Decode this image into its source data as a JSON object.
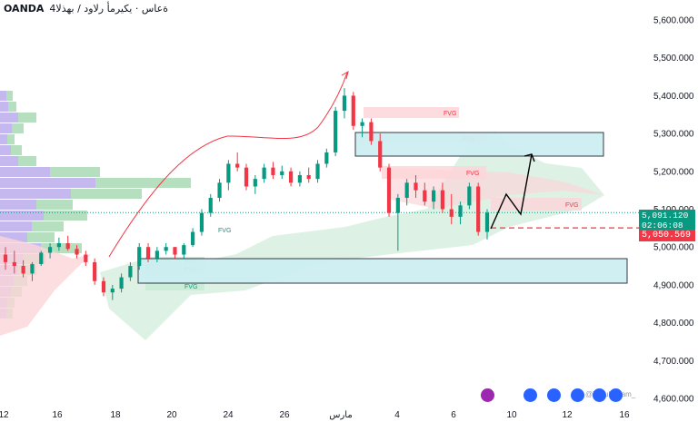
{
  "header": {
    "symbol": "OANDA",
    "description": "4ةعاس · يكيرمأ رلاود / بهذلا"
  },
  "colors": {
    "up": "#089981",
    "down": "#f23645",
    "fvg_up_fill": "#c8ecd6",
    "fvg_down_fill": "#fbd6d9",
    "zone_fill": "#cdeff3",
    "zone_border": "#2a2e39"
  },
  "price_tags": {
    "current": "5,091.120",
    "countdown": "02:06:08",
    "level": "5,050.569"
  },
  "fvg_label": "FVG",
  "x_ticks": [
    "12",
    "16",
    "18",
    "20",
    "24",
    "26",
    "مارس",
    "4",
    "6",
    "10",
    "12",
    "16"
  ],
  "watermark": "@Nurul_Islam_",
  "chart_data": {
    "type": "candlestick",
    "y_ticks": [
      "5,600.000",
      "5,500.000",
      "5,400.000",
      "5,300.000",
      "5,200.000",
      "5,100.000",
      "5,000.000",
      "4,900.000",
      "4,800.000",
      "4,700.000",
      "4,600.000"
    ],
    "ylim": [
      4590,
      5640
    ],
    "dotted_level": 5091.12,
    "dashed_level": 5050.569,
    "candles": [
      [
        4980,
        5000,
        4940,
        4960
      ],
      [
        4960,
        4990,
        4930,
        4950
      ],
      [
        4950,
        4965,
        4920,
        4930
      ],
      [
        4930,
        4960,
        4910,
        4955
      ],
      [
        4955,
        4990,
        4950,
        4985
      ],
      [
        4985,
        5010,
        4970,
        5000
      ],
      [
        5000,
        5025,
        4990,
        5010
      ],
      [
        5010,
        5030,
        4990,
        4995
      ],
      [
        4995,
        5005,
        4970,
        4980
      ],
      [
        4980,
        4990,
        4950,
        4960
      ],
      [
        4960,
        4970,
        4900,
        4910
      ],
      [
        4910,
        4920,
        4870,
        4880
      ],
      [
        4880,
        4900,
        4860,
        4890
      ],
      [
        4890,
        4930,
        4880,
        4920
      ],
      [
        4920,
        4960,
        4910,
        4950
      ],
      [
        4950,
        5010,
        4940,
        5000
      ],
      [
        5000,
        5010,
        4960,
        4970
      ],
      [
        4970,
        5000,
        4960,
        4990
      ],
      [
        4990,
        5010,
        4980,
        5000
      ],
      [
        5000,
        5000,
        4970,
        4980
      ],
      [
        4980,
        5010,
        4970,
        5005
      ],
      [
        5005,
        5050,
        5000,
        5040
      ],
      [
        5040,
        5100,
        5030,
        5090
      ],
      [
        5090,
        5140,
        5080,
        5130
      ],
      [
        5130,
        5180,
        5120,
        5170
      ],
      [
        5170,
        5230,
        5150,
        5220
      ],
      [
        5220,
        5250,
        5200,
        5210
      ],
      [
        5210,
        5220,
        5150,
        5160
      ],
      [
        5160,
        5190,
        5140,
        5180
      ],
      [
        5180,
        5220,
        5170,
        5210
      ],
      [
        5210,
        5225,
        5180,
        5190
      ],
      [
        5190,
        5215,
        5180,
        5200
      ],
      [
        5200,
        5210,
        5160,
        5170
      ],
      [
        5170,
        5200,
        5160,
        5190
      ],
      [
        5190,
        5210,
        5170,
        5180
      ],
      [
        5180,
        5230,
        5170,
        5220
      ],
      [
        5220,
        5260,
        5210,
        5250
      ],
      [
        5250,
        5370,
        5240,
        5360
      ],
      [
        5360,
        5420,
        5340,
        5400
      ],
      [
        5400,
        5410,
        5310,
        5320
      ],
      [
        5320,
        5340,
        5290,
        5330
      ],
      [
        5330,
        5340,
        5270,
        5280
      ],
      [
        5280,
        5300,
        5200,
        5210
      ],
      [
        5210,
        5220,
        5080,
        5090
      ],
      [
        5090,
        5140,
        4990,
        5130
      ],
      [
        5130,
        5180,
        5110,
        5170
      ],
      [
        5170,
        5190,
        5130,
        5150
      ],
      [
        5150,
        5170,
        5110,
        5120
      ],
      [
        5120,
        5160,
        5100,
        5150
      ],
      [
        5150,
        5170,
        5090,
        5100
      ],
      [
        5100,
        5140,
        5060,
        5080
      ],
      [
        5080,
        5120,
        5060,
        5110
      ],
      [
        5110,
        5170,
        5100,
        5160
      ],
      [
        5160,
        5170,
        5030,
        5040
      ],
      [
        5040,
        5100,
        5020,
        5091
      ]
    ],
    "zones": [
      {
        "name": "supply-zone",
        "y1": 5310,
        "y2": 5245
      },
      {
        "name": "demand-zone",
        "y1": 4970,
        "y2": 4905
      }
    ],
    "fvg_marks": [
      "red",
      "red",
      "red",
      "red",
      "green",
      "green",
      "green",
      "green"
    ]
  }
}
